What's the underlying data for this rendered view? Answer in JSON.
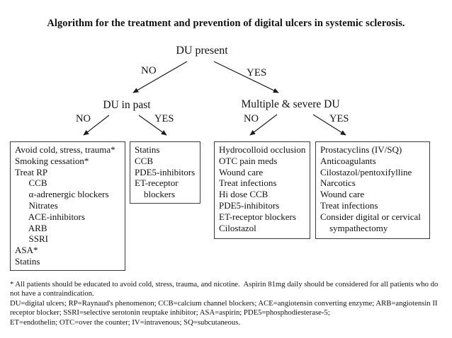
{
  "title": "Algorithm for the treatment and prevention of digital ulcers in systemic sclerosis.",
  "flowchart": {
    "root": "DU present",
    "root_branches": {
      "no": "NO",
      "yes": "YES"
    },
    "left_node": "DU in past",
    "left_branches": {
      "no": "NO",
      "yes": "YES"
    },
    "right_node": "Multiple & severe DU",
    "right_branches": {
      "no": "NO",
      "yes": "YES"
    }
  },
  "boxes": {
    "prevention": {
      "lines": [
        "Avoid cold, stress, trauma*",
        "Smoking cessation*",
        "Treat RP",
        "      CCB",
        "      α-adrenergic blockers",
        "      Nitrates",
        "      ACE-inhibitors",
        "      ARB",
        "      SSRI",
        "ASA*",
        "Statins"
      ]
    },
    "past_du_yes": {
      "lines": [
        "Statins",
        "CCB",
        "PDE5-inhibitors",
        "ET-receptor",
        "    blockers"
      ]
    },
    "du_not_severe": {
      "lines": [
        "Hydrocolloid occlusion",
        "OTC pain meds",
        "Wound care",
        "Treat infections",
        "Hi dose CCB",
        "PDE5-inhibitors",
        "ET-receptor blockers",
        "Cilostazol"
      ]
    },
    "du_severe": {
      "lines": [
        "Prostacyclins (IV/SQ)",
        "Anticoagulants",
        "Cilostazol/pentoxifylline",
        "Narcotics",
        "Wound care",
        "Treat infections",
        "Consider digital or cervical",
        "    sympathectomy"
      ]
    }
  },
  "footnote": {
    "lines": [
      "* All patients should be educated to avoid cold, stress, trauma, and nicotine.  Aspirin 81mg daily should be considered for all patients who do",
      "not have a contraindication.",
      "DU=digital ulcers; RP=Raynaud's phenomenon; CCB=calcium channel blockers; ACE=angiotensin converting enzyme; ARB=angiotensin II",
      "receptor blocker; SSRI=selective serotonin reuptake inhibitor; ASA=aspirin; PDE5=phosphodiesterase-5;",
      "ET=endothelin; OTC=over the counter; IV=intravenous; SQ=subcutaneous."
    ]
  }
}
